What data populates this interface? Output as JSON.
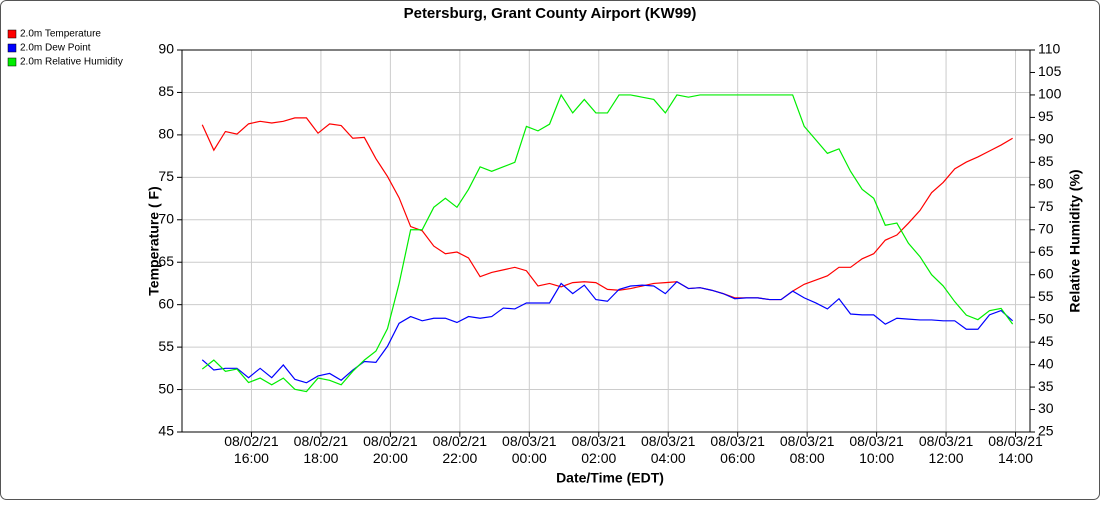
{
  "chart_data": {
    "type": "line",
    "title": "Petersburg, Grant County Airport (KW99)",
    "xlabel": "Date/Time (EDT)",
    "ylabel": "Temperature ( F)",
    "y2label": "Relative Humidity (%)",
    "legend": "top-left",
    "grid": true,
    "xlim": [
      "08/02/21 14:00",
      "08/03/21 14:25"
    ],
    "xticks": [
      "08/02/21 16:00",
      "08/02/21 18:00",
      "08/02/21 20:00",
      "08/02/21 22:00",
      "08/03/21 00:00",
      "08/03/21 02:00",
      "08/03/21 04:00",
      "08/03/21 06:00",
      "08/03/21 08:00",
      "08/03/21 10:00",
      "08/03/21 12:00",
      "08/03/21 14:00"
    ],
    "ylim": [
      45,
      90
    ],
    "yticks": [
      45,
      50,
      55,
      60,
      65,
      70,
      75,
      80,
      85,
      90
    ],
    "y2lim": [
      25,
      110
    ],
    "y2ticks": [
      25,
      30,
      35,
      40,
      45,
      50,
      55,
      60,
      65,
      70,
      75,
      80,
      85,
      90,
      95,
      100,
      105,
      110
    ],
    "x": [
      "08/02/21 14:35",
      "08/02/21 14:55",
      "08/02/21 15:15",
      "08/02/21 15:35",
      "08/02/21 15:55",
      "08/02/21 16:15",
      "08/02/21 16:35",
      "08/02/21 16:55",
      "08/02/21 17:15",
      "08/02/21 17:35",
      "08/02/21 17:55",
      "08/02/21 18:15",
      "08/02/21 18:35",
      "08/02/21 18:55",
      "08/02/21 19:15",
      "08/02/21 19:35",
      "08/02/21 19:55",
      "08/02/21 20:15",
      "08/02/21 20:35",
      "08/02/21 20:55",
      "08/02/21 21:15",
      "08/02/21 21:35",
      "08/02/21 21:55",
      "08/02/21 22:15",
      "08/02/21 22:35",
      "08/02/21 22:55",
      "08/02/21 23:15",
      "08/02/21 23:35",
      "08/02/21 23:55",
      "08/03/21 00:15",
      "08/03/21 00:35",
      "08/03/21 00:55",
      "08/03/21 01:15",
      "08/03/21 01:35",
      "08/03/21 01:55",
      "08/03/21 02:15",
      "08/03/21 02:35",
      "08/03/21 02:55",
      "08/03/21 03:15",
      "08/03/21 03:35",
      "08/03/21 03:55",
      "08/03/21 04:15",
      "08/03/21 04:35",
      "08/03/21 04:55",
      "08/03/21 05:15",
      "08/03/21 05:35",
      "08/03/21 05:55",
      "08/03/21 06:15",
      "08/03/21 06:35",
      "08/03/21 06:55",
      "08/03/21 07:15",
      "08/03/21 07:35",
      "08/03/21 07:55",
      "08/03/21 08:15",
      "08/03/21 08:35",
      "08/03/21 08:55",
      "08/03/21 09:15",
      "08/03/21 09:35",
      "08/03/21 09:55",
      "08/03/21 10:15",
      "08/03/21 10:35",
      "08/03/21 10:55",
      "08/03/21 11:15",
      "08/03/21 11:35",
      "08/03/21 11:55",
      "08/03/21 12:15",
      "08/03/21 12:35",
      "08/03/21 12:55",
      "08/03/21 13:15",
      "08/03/21 13:35",
      "08/03/21 13:55"
    ],
    "series": [
      {
        "name": "2.0m Temperature",
        "color": "#ff0000",
        "axis": "y",
        "values": [
          81.2,
          78.2,
          80.4,
          80.1,
          81.3,
          81.6,
          81.4,
          81.6,
          82.0,
          82.0,
          80.2,
          81.3,
          81.1,
          79.6,
          79.7,
          77.2,
          75.1,
          72.6,
          69.2,
          68.7,
          66.9,
          66.0,
          66.2,
          65.5,
          63.3,
          63.8,
          64.1,
          64.4,
          64.0,
          62.2,
          62.5,
          62.1,
          62.6,
          62.7,
          62.6,
          61.8,
          61.7,
          61.9,
          62.2,
          62.5,
          62.6,
          62.7,
          61.9,
          62.0,
          61.7,
          61.3,
          60.8,
          60.8,
          60.8,
          60.6,
          60.6,
          61.6,
          62.4,
          62.9,
          63.4,
          64.4,
          64.4,
          65.4,
          66.0,
          67.6,
          68.2,
          69.6,
          71.1,
          73.2,
          74.4,
          76.0,
          76.8,
          77.4,
          78.1,
          78.8,
          79.6
        ]
      },
      {
        "name": "2.0m Dew Point",
        "color": "#0000ff",
        "axis": "y",
        "values": [
          53.5,
          52.3,
          52.5,
          52.5,
          51.4,
          52.5,
          51.4,
          52.9,
          51.2,
          50.8,
          51.6,
          51.9,
          51.1,
          52.3,
          53.3,
          53.2,
          55.1,
          57.8,
          58.6,
          58.1,
          58.4,
          58.4,
          57.9,
          58.6,
          58.4,
          58.6,
          59.6,
          59.5,
          60.2,
          60.2,
          60.2,
          62.5,
          61.3,
          62.3,
          60.6,
          60.4,
          61.8,
          62.2,
          62.3,
          62.2,
          61.3,
          62.7,
          61.9,
          62.0,
          61.7,
          61.3,
          60.7,
          60.8,
          60.8,
          60.6,
          60.6,
          61.6,
          60.8,
          60.2,
          59.5,
          60.7,
          58.9,
          58.8,
          58.8,
          57.7,
          58.4,
          58.3,
          58.2,
          58.2,
          58.1,
          58.1,
          57.1,
          57.1,
          58.8,
          59.3,
          58.1
        ]
      },
      {
        "name": "2.0m Relative Humidity",
        "color": "#00ee00",
        "axis": "y2",
        "values": [
          39,
          41,
          38.5,
          39,
          36,
          37,
          35.5,
          37,
          34.5,
          34,
          37,
          36.5,
          35.5,
          38.5,
          41,
          43,
          48,
          58,
          70,
          70,
          75,
          77,
          75,
          79,
          84,
          83,
          84,
          85,
          93,
          92,
          93.5,
          100,
          96,
          99,
          96,
          96,
          100,
          100,
          99.5,
          99,
          96,
          100,
          99.5,
          100,
          100,
          100,
          100,
          100,
          100,
          100,
          100,
          100,
          93,
          90,
          87,
          88,
          83,
          79,
          77,
          71,
          71.5,
          67,
          64,
          60,
          57.5,
          54,
          51,
          50,
          52,
          52.5,
          49
        ]
      }
    ]
  }
}
